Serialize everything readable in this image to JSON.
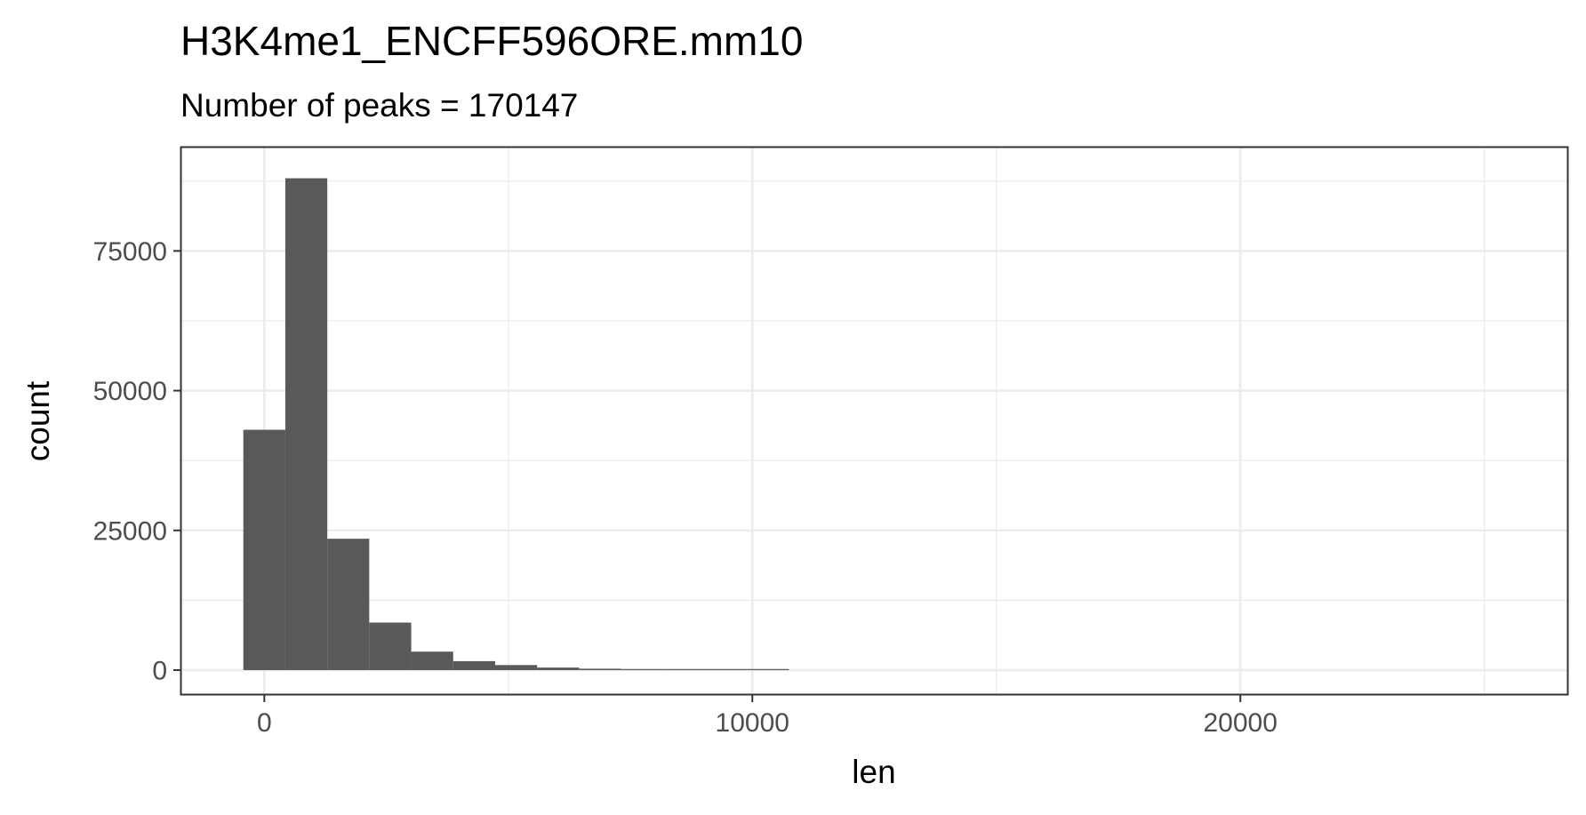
{
  "chart_data": {
    "type": "bar",
    "title": "H3K4me1_ENCFF596ORE.mm10",
    "subtitle": "Number of peaks = 170147",
    "xlabel": "len",
    "ylabel": "count",
    "xlim": [
      -1700,
      26700
    ],
    "ylim": [
      -4300,
      93500
    ],
    "xticks": [
      0,
      10000,
      20000
    ],
    "xtick_labels": [
      "0",
      "10000",
      "20000"
    ],
    "yticks": [
      0,
      25000,
      50000,
      75000
    ],
    "ytick_labels": [
      "0",
      "25000",
      "50000",
      "75000"
    ],
    "grid": true,
    "legend": "none",
    "bar_color": "#595959",
    "bins": [
      {
        "x0": -430,
        "x1": 430,
        "count": 43000
      },
      {
        "x0": 430,
        "x1": 1290,
        "count": 88000
      },
      {
        "x0": 1290,
        "x1": 2150,
        "count": 23500
      },
      {
        "x0": 2150,
        "x1": 3010,
        "count": 8500
      },
      {
        "x0": 3010,
        "x1": 3870,
        "count": 3300
      },
      {
        "x0": 3870,
        "x1": 4730,
        "count": 1600
      },
      {
        "x0": 4730,
        "x1": 5590,
        "count": 900
      },
      {
        "x0": 5590,
        "x1": 6450,
        "count": 450
      },
      {
        "x0": 6450,
        "x1": 7310,
        "count": 250
      },
      {
        "x0": 7310,
        "x1": 8170,
        "count": 120
      },
      {
        "x0": 8170,
        "x1": 9030,
        "count": 70
      },
      {
        "x0": 9030,
        "x1": 9890,
        "count": 40
      },
      {
        "x0": 9890,
        "x1": 10750,
        "count": 25
      }
    ]
  }
}
